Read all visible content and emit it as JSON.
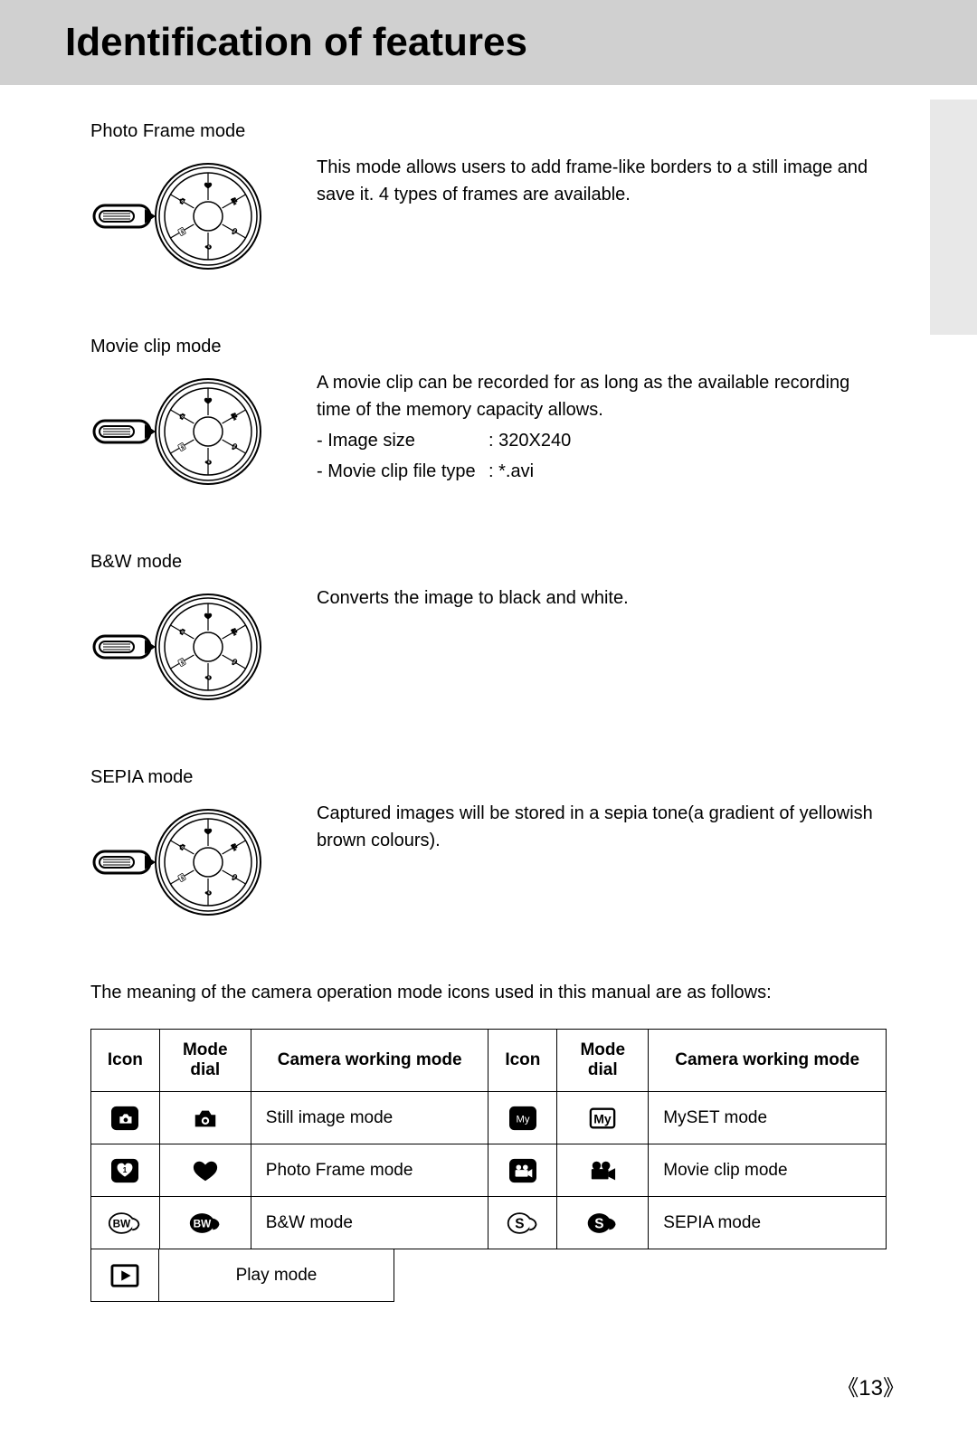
{
  "page": {
    "title": "Identification of features",
    "number": "13",
    "background": "#ffffff",
    "header_bg": "#d0d0d0",
    "side_tab_bg": "#e8e8e8",
    "text_color": "#000000",
    "title_fontsize": 44,
    "body_fontsize": 20
  },
  "modes": [
    {
      "label": "Photo Frame mode",
      "description": "This mode allows users to add frame-like borders to a still image and save it. 4 types of frames are available.",
      "dial_rotation": 0
    },
    {
      "label": "Movie clip mode",
      "description": "A movie clip can be recorded for as long as the available recording time of the memory capacity allows.",
      "specs": [
        {
          "key": "- Image size",
          "value": ": 320X240"
        },
        {
          "key": "- Movie clip file type",
          "value": ": *.avi"
        }
      ],
      "dial_rotation": 60
    },
    {
      "label": "B&W mode",
      "description": "Converts the image to black and white.",
      "dial_rotation": 120
    },
    {
      "label": "SEPIA mode",
      "description": "Captured images will be stored in a sepia tone(a gradient of yellowish brown colours).",
      "dial_rotation": 180
    }
  ],
  "table_intro": "The meaning of the camera operation mode icons used in this manual are as follows:",
  "table": {
    "headers": [
      "Icon",
      "Mode dial",
      "Camera working mode",
      "Icon",
      "Mode dial",
      "Camera working mode"
    ],
    "rows": [
      {
        "left": {
          "icon": "camera-box",
          "dial": "camera-solid",
          "mode": "Still image mode"
        },
        "right": {
          "icon": "my-box",
          "dial": "my-outline",
          "mode": "MySET mode"
        }
      },
      {
        "left": {
          "icon": "heart-box",
          "dial": "heart-solid",
          "mode": "Photo Frame mode"
        },
        "right": {
          "icon": "movie-box",
          "dial": "movie-solid",
          "mode": "Movie clip mode"
        }
      },
      {
        "left": {
          "icon": "bw-outline",
          "dial": "bw-solid",
          "mode": "B&W mode"
        },
        "right": {
          "icon": "s-outline",
          "dial": "s-solid",
          "mode": "SEPIA mode"
        }
      }
    ],
    "play_mode": {
      "icon": "play-box",
      "label": "Play mode"
    },
    "col_widths": {
      "icon": 75,
      "dial": 100,
      "mode": 260
    }
  }
}
